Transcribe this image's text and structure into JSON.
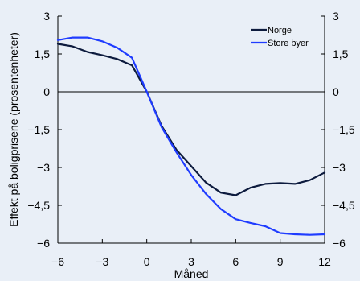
{
  "chart_data": {
    "type": "line",
    "title": "",
    "xlabel": "Måned",
    "ylabel": "Effekt på boligprisene (prosentenheter)",
    "x": [
      -6,
      -5,
      -4,
      -3,
      -2,
      -1,
      0,
      1,
      2,
      3,
      4,
      5,
      6,
      7,
      8,
      9,
      10,
      11,
      12
    ],
    "xlim": [
      -6,
      12
    ],
    "ylim": [
      -6,
      3
    ],
    "x_ticks": [
      -6,
      -3,
      0,
      3,
      6,
      9,
      12
    ],
    "x_tick_labels": [
      "-6",
      "-3",
      "0",
      "3",
      "6",
      "9",
      "12"
    ],
    "y_ticks": [
      3,
      1.5,
      0,
      -1.5,
      -3,
      -4.5,
      -6
    ],
    "y_tick_labels": [
      "3",
      "1,5",
      "0",
      "-1,5",
      "-3",
      "-4,5",
      "-6"
    ],
    "zero_line": true,
    "grid": false,
    "legend_position": "top-right",
    "series": [
      {
        "name": "Norge",
        "color": "#0d1b3e",
        "values": [
          1.9,
          1.8,
          1.58,
          1.45,
          1.3,
          1.05,
          0.0,
          -1.35,
          -2.3,
          -2.95,
          -3.6,
          -4.0,
          -4.1,
          -3.8,
          -3.65,
          -3.62,
          -3.65,
          -3.5,
          -3.2
        ]
      },
      {
        "name": "Store byer",
        "color": "#1f3cff",
        "values": [
          2.05,
          2.15,
          2.15,
          2.0,
          1.75,
          1.35,
          0.0,
          -1.4,
          -2.4,
          -3.3,
          -4.05,
          -4.65,
          -5.05,
          -5.2,
          -5.33,
          -5.6,
          -5.65,
          -5.67,
          -5.65
        ]
      }
    ]
  }
}
